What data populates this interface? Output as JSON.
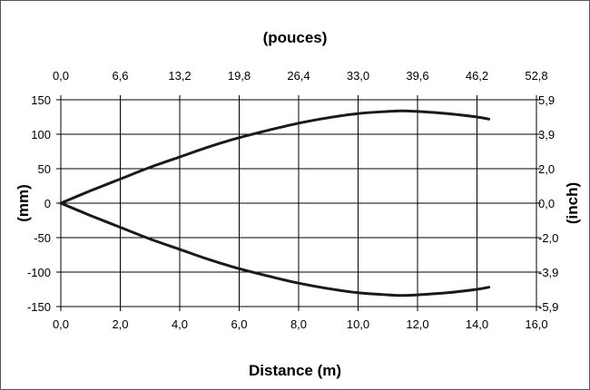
{
  "chart_data": {
    "type": "line",
    "title": "",
    "xlabel": "Distance (m)",
    "x2label": "(pouces)",
    "ylabel": "(mm)",
    "y2label": "(inch)",
    "xlim": [
      0,
      16
    ],
    "ylim": [
      -150,
      150
    ],
    "x_ticks": [
      "0,0",
      "2,0",
      "4,0",
      "6,0",
      "8,0",
      "10,0",
      "12,0",
      "14,0",
      "16,0"
    ],
    "x2_ticks": [
      "0,0",
      "6,6",
      "13,2",
      "19,8",
      "26,4",
      "33,0",
      "39,6",
      "46,2",
      "52,8"
    ],
    "y_ticks": [
      "150",
      "100",
      "50",
      "0",
      "-50",
      "-100",
      "-150"
    ],
    "y2_ticks": [
      "5,9",
      "3,9",
      "2,0",
      "0,0",
      "-2,0",
      "-3,9",
      "-5,9"
    ],
    "grid": true,
    "line_color": "#1a1a1a",
    "x": [
      0,
      1,
      2,
      3,
      4,
      5,
      6,
      7,
      8,
      9,
      10,
      11,
      11.5,
      12,
      13,
      14,
      14.4
    ],
    "series": [
      {
        "values": [
          0,
          18,
          35,
          52,
          67,
          82,
          95,
          106,
          116,
          124,
          130,
          133,
          134,
          133,
          130,
          125,
          122
        ]
      },
      {
        "values": [
          0,
          -18,
          -35,
          -52,
          -67,
          -82,
          -95,
          -106,
          -116,
          -124,
          -130,
          -133,
          -134,
          -133,
          -130,
          -125,
          -122
        ]
      }
    ]
  }
}
